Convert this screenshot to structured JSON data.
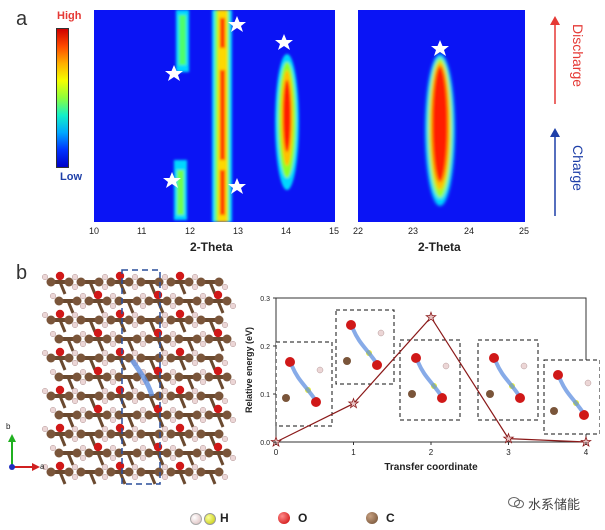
{
  "figure": {
    "panel_a_label": "a",
    "panel_b_label": "b",
    "colorbar": {
      "high": "High",
      "low": "Low"
    },
    "heatmap_left": {
      "xlabel": "2-Theta",
      "xticks": [
        "10",
        "11",
        "12",
        "13",
        "14",
        "15"
      ]
    },
    "heatmap_right": {
      "xlabel": "2-Theta",
      "xticks": [
        "22",
        "23",
        "24",
        "25"
      ]
    },
    "side_labels": {
      "discharge": "Discharge",
      "charge": "Charge",
      "discharge_color": "#e53935",
      "charge_color": "#1e3fa8"
    },
    "axes_indicator": {
      "b": "b",
      "a": "a"
    },
    "legend": {
      "h": "H",
      "o": "O",
      "c": "C"
    },
    "watermark": "水系储能"
  },
  "chart_data": {
    "type": "line",
    "xlabel": "Transfer coordinate",
    "ylabel": "Relative energy (eV)",
    "xlim": [
      0,
      4
    ],
    "ylim": [
      0.0,
      0.3
    ],
    "xticks": [
      "0",
      "1",
      "2",
      "3",
      "4"
    ],
    "yticks": [
      "0.0",
      "0.1",
      "0.2",
      "0.3"
    ],
    "grid": false,
    "series": [
      {
        "x": [
          0,
          1,
          2,
          3,
          4
        ],
        "values": [
          0.0,
          0.08,
          0.26,
          0.007,
          0.0
        ],
        "color": "#8b1a1a"
      }
    ]
  }
}
